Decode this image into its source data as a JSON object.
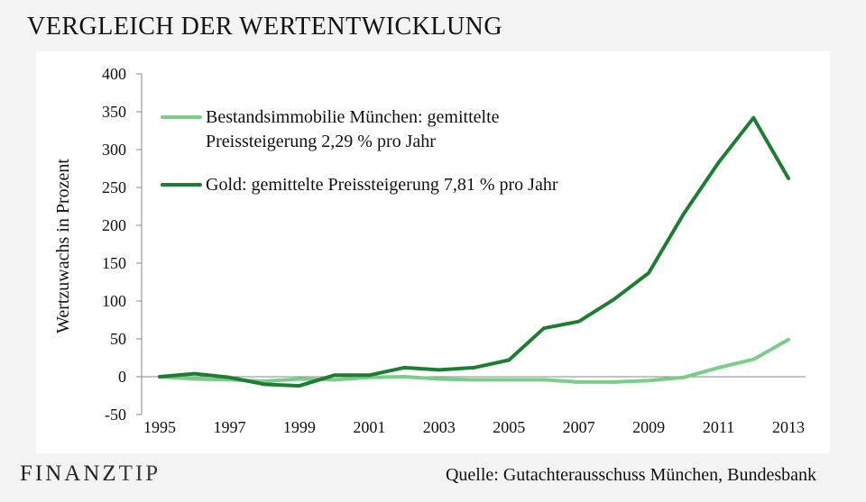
{
  "title": "VERGLEICH DER WERTENTWICKLUNG",
  "source": "Quelle: Gutachterausschuss München, Bundesbank",
  "logo": {
    "left": "FINANZ",
    "right": "TIP"
  },
  "colors": {
    "light": "#7ccc8a",
    "dark": "#1e7d32",
    "axis": "#888888"
  },
  "chart_data": {
    "type": "line",
    "ylabel": "Wertzuwachs in Prozent",
    "ylim": [
      -50,
      400
    ],
    "yticks": [
      -50,
      0,
      50,
      100,
      150,
      200,
      250,
      300,
      350,
      400
    ],
    "x": [
      1995,
      1996,
      1997,
      1998,
      1999,
      2000,
      2001,
      2002,
      2003,
      2004,
      2005,
      2006,
      2007,
      2008,
      2009,
      2010,
      2011,
      2012,
      2013
    ],
    "xticks": [
      1995,
      1997,
      1999,
      2001,
      2003,
      2005,
      2007,
      2009,
      2011,
      2013
    ],
    "series": [
      {
        "name": "Bestandsimmobilie München: gemittelte Preissteigerung 2,29 % pro Jahr",
        "name_lines": [
          "Bestandsimmobilie München: gemittelte",
          "Preissteigerung 2,29 % pro Jahr"
        ],
        "color": "#7ccc8a",
        "values": [
          0,
          -3,
          -4,
          -6,
          -3,
          -4,
          -1,
          0,
          -3,
          -4,
          -4,
          -4,
          -7,
          -7,
          -5,
          -1,
          12,
          23,
          49
        ]
      },
      {
        "name": "Gold: gemittelte Preissteigerung 7,81 % pro Jahr",
        "name_lines": [
          "Gold: gemittelte Preissteigerung 7,81 % pro Jahr"
        ],
        "color": "#1e7d32",
        "values": [
          0,
          4,
          -1,
          -10,
          -12,
          2,
          2,
          12,
          9,
          12,
          22,
          64,
          73,
          102,
          137,
          215,
          283,
          342,
          262
        ]
      }
    ]
  }
}
